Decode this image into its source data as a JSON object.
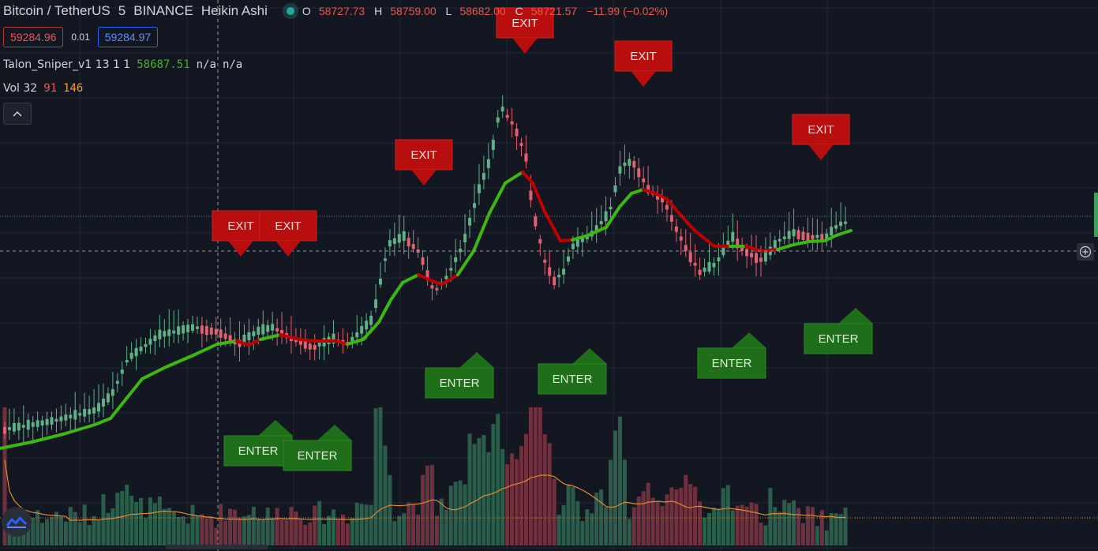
{
  "header": {
    "symbol": "Bitcoin / TetherUS",
    "interval": "5",
    "exchange": "BINANCE",
    "chart_style": "Heikin Ashi",
    "ohlc": {
      "o_label": "O",
      "o": "58727.73",
      "h_label": "H",
      "h": "58759.00",
      "l_label": "L",
      "l": "58682.00",
      "c_label": "C",
      "c": "58721.57",
      "change": "−11.99 (−0.02%)"
    }
  },
  "trade": {
    "bid": "59284.96",
    "spread": "0.01",
    "ask": "59284.97"
  },
  "indicators": {
    "talon": {
      "name": "Talon_Sniper_v1 13 1 1",
      "value": "58687.51",
      "na1": "n/a",
      "na2": "n/a"
    },
    "volume": {
      "name": "Vol 32",
      "v1": "91",
      "v2": "146"
    }
  },
  "controls": {
    "collapse_icon": "chevron-up-icon",
    "logo_icon": "tradingview-logo-icon",
    "crosshair_icon": "plus-circle-icon"
  },
  "colors": {
    "up": "#60b088",
    "down": "#e26070",
    "ma_up": "#3cb810",
    "ma_down": "#c00000",
    "exit": "#b80e0e",
    "enter": "#1e6e1a",
    "volume_ma": "#e08a30"
  },
  "chart_data": {
    "type": "candlestick",
    "style": "Heikin Ashi",
    "price_axis_visible": false,
    "visible_range": [
      58450,
      59320
    ],
    "series": [
      {
        "name": "Talon_Sniper_v1",
        "last": 58687.51
      },
      {
        "name": "Vol 32"
      }
    ],
    "candle_count": 180,
    "signals": [
      {
        "label": "EXIT",
        "type": "exit"
      },
      {
        "label": "EXIT",
        "type": "exit"
      },
      {
        "label": "EXIT",
        "type": "exit"
      },
      {
        "label": "EXIT",
        "type": "exit"
      },
      {
        "label": "EXIT",
        "type": "exit"
      },
      {
        "label": "EXIT",
        "type": "exit"
      },
      {
        "label": "ENTER",
        "type": "enter"
      },
      {
        "label": "ENTER",
        "type": "enter"
      },
      {
        "label": "ENTER",
        "type": "enter"
      },
      {
        "label": "ENTER",
        "type": "enter"
      },
      {
        "label": "ENTER",
        "type": "enter"
      },
      {
        "label": "ENTER",
        "type": "enter"
      }
    ]
  }
}
